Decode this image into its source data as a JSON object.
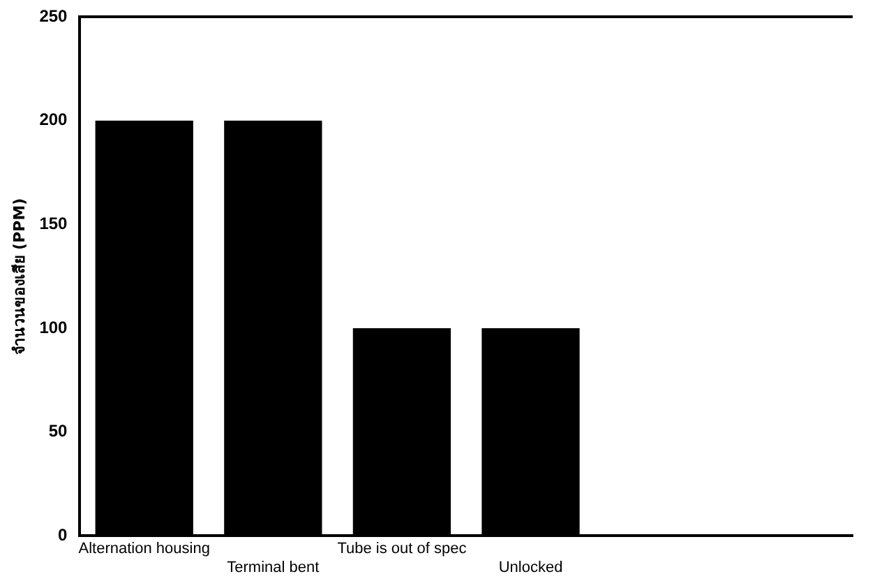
{
  "chart_data": {
    "type": "bar",
    "ylabel": "จำนวนของเสีย (PPM)",
    "categories": [
      "Alternation housing",
      "Terminal bent",
      "Tube is out of spec",
      "Unlocked",
      null,
      null
    ],
    "values": [
      200,
      200,
      100,
      100,
      null,
      null
    ],
    "color": "#000000",
    "ylim": [
      0,
      250
    ],
    "yticks": [
      0,
      50,
      100,
      150,
      200,
      250
    ],
    "grid": false,
    "legend": false
  }
}
